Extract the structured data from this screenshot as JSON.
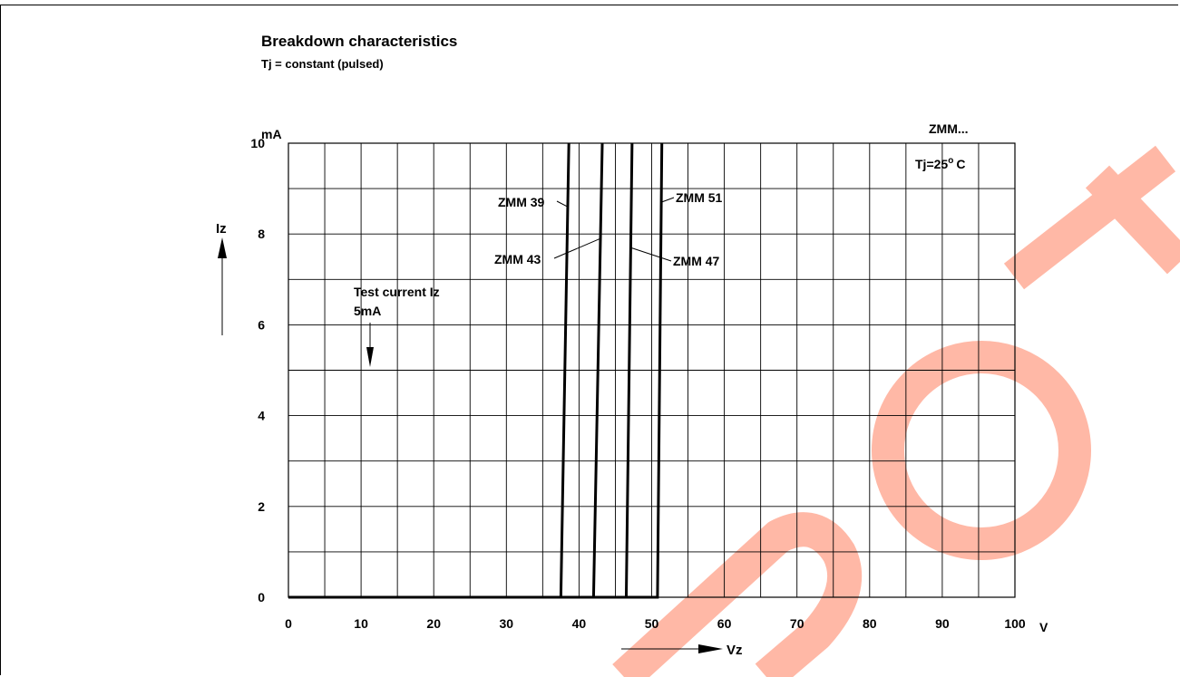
{
  "title": "Breakdown characteristics",
  "subtitle": "Tj = constant (pulsed)",
  "chart_data": {
    "type": "line",
    "y_unit": "mA",
    "x_unit": "V",
    "ylabel": "Iz",
    "xlabel": "Vz",
    "xlim": [
      0,
      100
    ],
    "ylim": [
      0,
      10
    ],
    "x_ticks": [
      0,
      10,
      20,
      30,
      40,
      50,
      60,
      70,
      80,
      90,
      100
    ],
    "y_ticks": [
      0,
      2,
      4,
      6,
      8,
      10
    ],
    "grid": true,
    "x_tick_labels": [
      "0",
      "10",
      "20",
      "30",
      "40",
      "50",
      "60",
      "70",
      "80",
      "90",
      "100"
    ],
    "y_tick_labels": [
      "0",
      "2",
      "4",
      "6",
      "8",
      "10"
    ],
    "part_label": "ZMM...",
    "condition_label": "Tj=25",
    "condition_sup": "o",
    "condition_unit": "C",
    "test_current": {
      "value": 5,
      "label_line1": "Test current Iz",
      "label_line2": "5mA"
    },
    "series": [
      {
        "name": "ZMM 39",
        "x": [
          0,
          37.5,
          38.6
        ],
        "y": [
          0,
          0,
          10
        ]
      },
      {
        "name": "ZMM 43",
        "x": [
          0,
          42.0,
          43.2
        ],
        "y": [
          0,
          0,
          10
        ]
      },
      {
        "name": "ZMM 47",
        "x": [
          0,
          46.5,
          47.3
        ],
        "y": [
          0,
          0,
          10
        ]
      },
      {
        "name": "ZMM 51",
        "x": [
          0,
          50.8,
          51.4
        ],
        "y": [
          0,
          0,
          10
        ]
      }
    ]
  },
  "colors": {
    "line": "#000000",
    "watermark": "#ffb8a6"
  }
}
